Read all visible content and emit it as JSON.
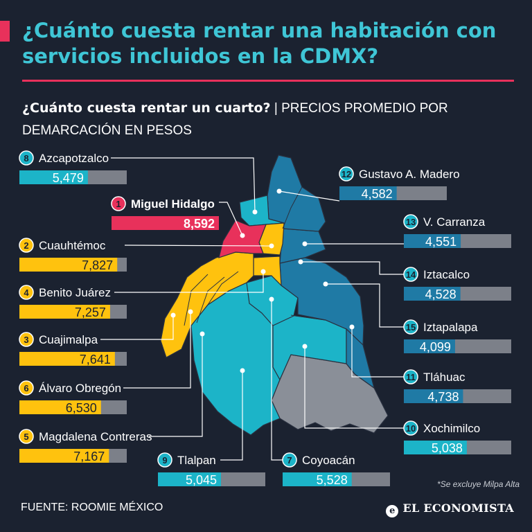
{
  "title": "¿Cuánto cuesta rentar una habitación con servicios incluidos en la CDMX?",
  "subtitle_bold": "¿Cuánto cuesta rentar un cuarto?",
  "subtitle_rest": "| PRECIOS PROMEDIO POR DEMARCACIÓN EN PESOS",
  "source": "FUENTE: ROOMIE MÉXICO",
  "note": "*Se excluye Milpa Alta",
  "brand": "EL ECONOMISTA",
  "brand_icon": "e-logo-icon",
  "colors": {
    "background": "#1b2230",
    "title": "#3fc6d6",
    "accent": "#e8315b",
    "yellow": "#ffc20e",
    "teal": "#1cb4c8",
    "blue": "#1f7aa5",
    "gray": "#8a8f98",
    "track": "#7c8089"
  },
  "chart_data": {
    "type": "bar",
    "max_value": 8592,
    "categories": [
      "Miguel Hidalgo",
      "Cuauhtémoc",
      "Cuajimalpa",
      "Benito Juárez",
      "Magdalena Contreras",
      "Álvaro Obregón",
      "Coyoacán",
      "Azcapotzalco",
      "Xochimilco",
      "Tlalpan",
      "Tláhuac",
      "Gustavo A. Madero",
      "V. Carranza",
      "Iztacalco",
      "Iztapalapa"
    ],
    "ranks": [
      1,
      2,
      3,
      4,
      5,
      6,
      7,
      8,
      10,
      9,
      11,
      12,
      13,
      14,
      15
    ],
    "values": [
      8592,
      7827,
      7641,
      7257,
      7167,
      6530,
      5528,
      5479,
      5038,
      5045,
      4738,
      4582,
      4551,
      4528,
      4099
    ],
    "value_labels": [
      "8,592",
      "7,827",
      "7,641",
      "7,257",
      "7,167",
      "6,530",
      "5,528",
      "5,479",
      "5,038",
      "5,045",
      "4,738",
      "4,582",
      "4,551",
      "4,528",
      "4,099"
    ],
    "groups": [
      "pink",
      "yellow",
      "yellow",
      "yellow",
      "yellow",
      "yellow",
      "teal",
      "teal",
      "teal",
      "teal",
      "blue",
      "blue",
      "blue",
      "blue",
      "blue"
    ]
  }
}
